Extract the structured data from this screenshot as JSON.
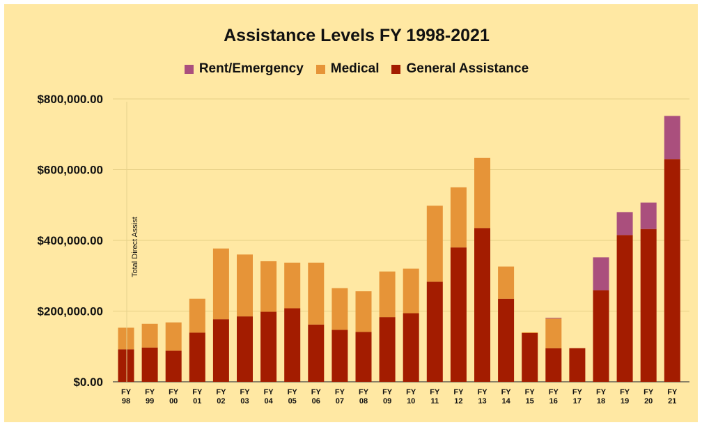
{
  "chart_data": {
    "type": "bar",
    "stacked": true,
    "title": "Assistance Levels FY 1998-2021",
    "xlabel": "",
    "ylabel": "",
    "ylim": [
      0,
      800000
    ],
    "yticks": [
      "$0.00",
      "$200,000.00",
      "$400,000.00",
      "$600,000.00",
      "$800,000.00"
    ],
    "ytick_values": [
      0,
      200000,
      400000,
      600000,
      800000
    ],
    "grid": true,
    "legend_position": "top-center",
    "annotation": "Total Direct Assist",
    "categories": [
      [
        "FY",
        "98"
      ],
      [
        "FY",
        "99"
      ],
      [
        "FY",
        "00"
      ],
      [
        "FY",
        "01"
      ],
      [
        "FY",
        "02"
      ],
      [
        "FY",
        "03"
      ],
      [
        "FY",
        "04"
      ],
      [
        "FY",
        "05"
      ],
      [
        "FY",
        "06"
      ],
      [
        "FY",
        "07"
      ],
      [
        "FY",
        "08"
      ],
      [
        "FY",
        "09"
      ],
      [
        "FY",
        "10"
      ],
      [
        "FY",
        "11"
      ],
      [
        "FY",
        "12"
      ],
      [
        "FY",
        "13"
      ],
      [
        "FY",
        "14"
      ],
      [
        "FY",
        "15"
      ],
      [
        "FY",
        "16"
      ],
      [
        "FY",
        "17"
      ],
      [
        "FY",
        "18"
      ],
      [
        "FY",
        "19"
      ],
      [
        "FY",
        "20"
      ],
      [
        "FY",
        "21"
      ]
    ],
    "series": [
      {
        "name": "General Assistance",
        "color": "#a31c00",
        "values": [
          92000,
          97000,
          88000,
          139000,
          177000,
          185000,
          198000,
          208000,
          162000,
          147000,
          141000,
          183000,
          194000,
          283000,
          380000,
          435000,
          235000,
          138000,
          95000,
          95000,
          259000,
          415000,
          432000,
          630000
        ]
      },
      {
        "name": "Medical",
        "color": "#e69438",
        "values": [
          61000,
          67000,
          80000,
          96000,
          200000,
          175000,
          143000,
          129000,
          175000,
          118000,
          115000,
          129000,
          126000,
          215000,
          170000,
          198000,
          91000,
          2000,
          84000,
          0,
          0,
          0,
          0,
          0
        ]
      },
      {
        "name": "Rent/Emergency",
        "color": "#aa4f7d",
        "values": [
          0,
          0,
          0,
          0,
          0,
          0,
          0,
          0,
          0,
          0,
          0,
          0,
          0,
          0,
          0,
          0,
          0,
          0,
          2000,
          0,
          93000,
          65000,
          75000,
          122000
        ]
      }
    ],
    "legend_order": [
      "Rent/Emergency",
      "Medical",
      "General Assistance"
    ]
  }
}
